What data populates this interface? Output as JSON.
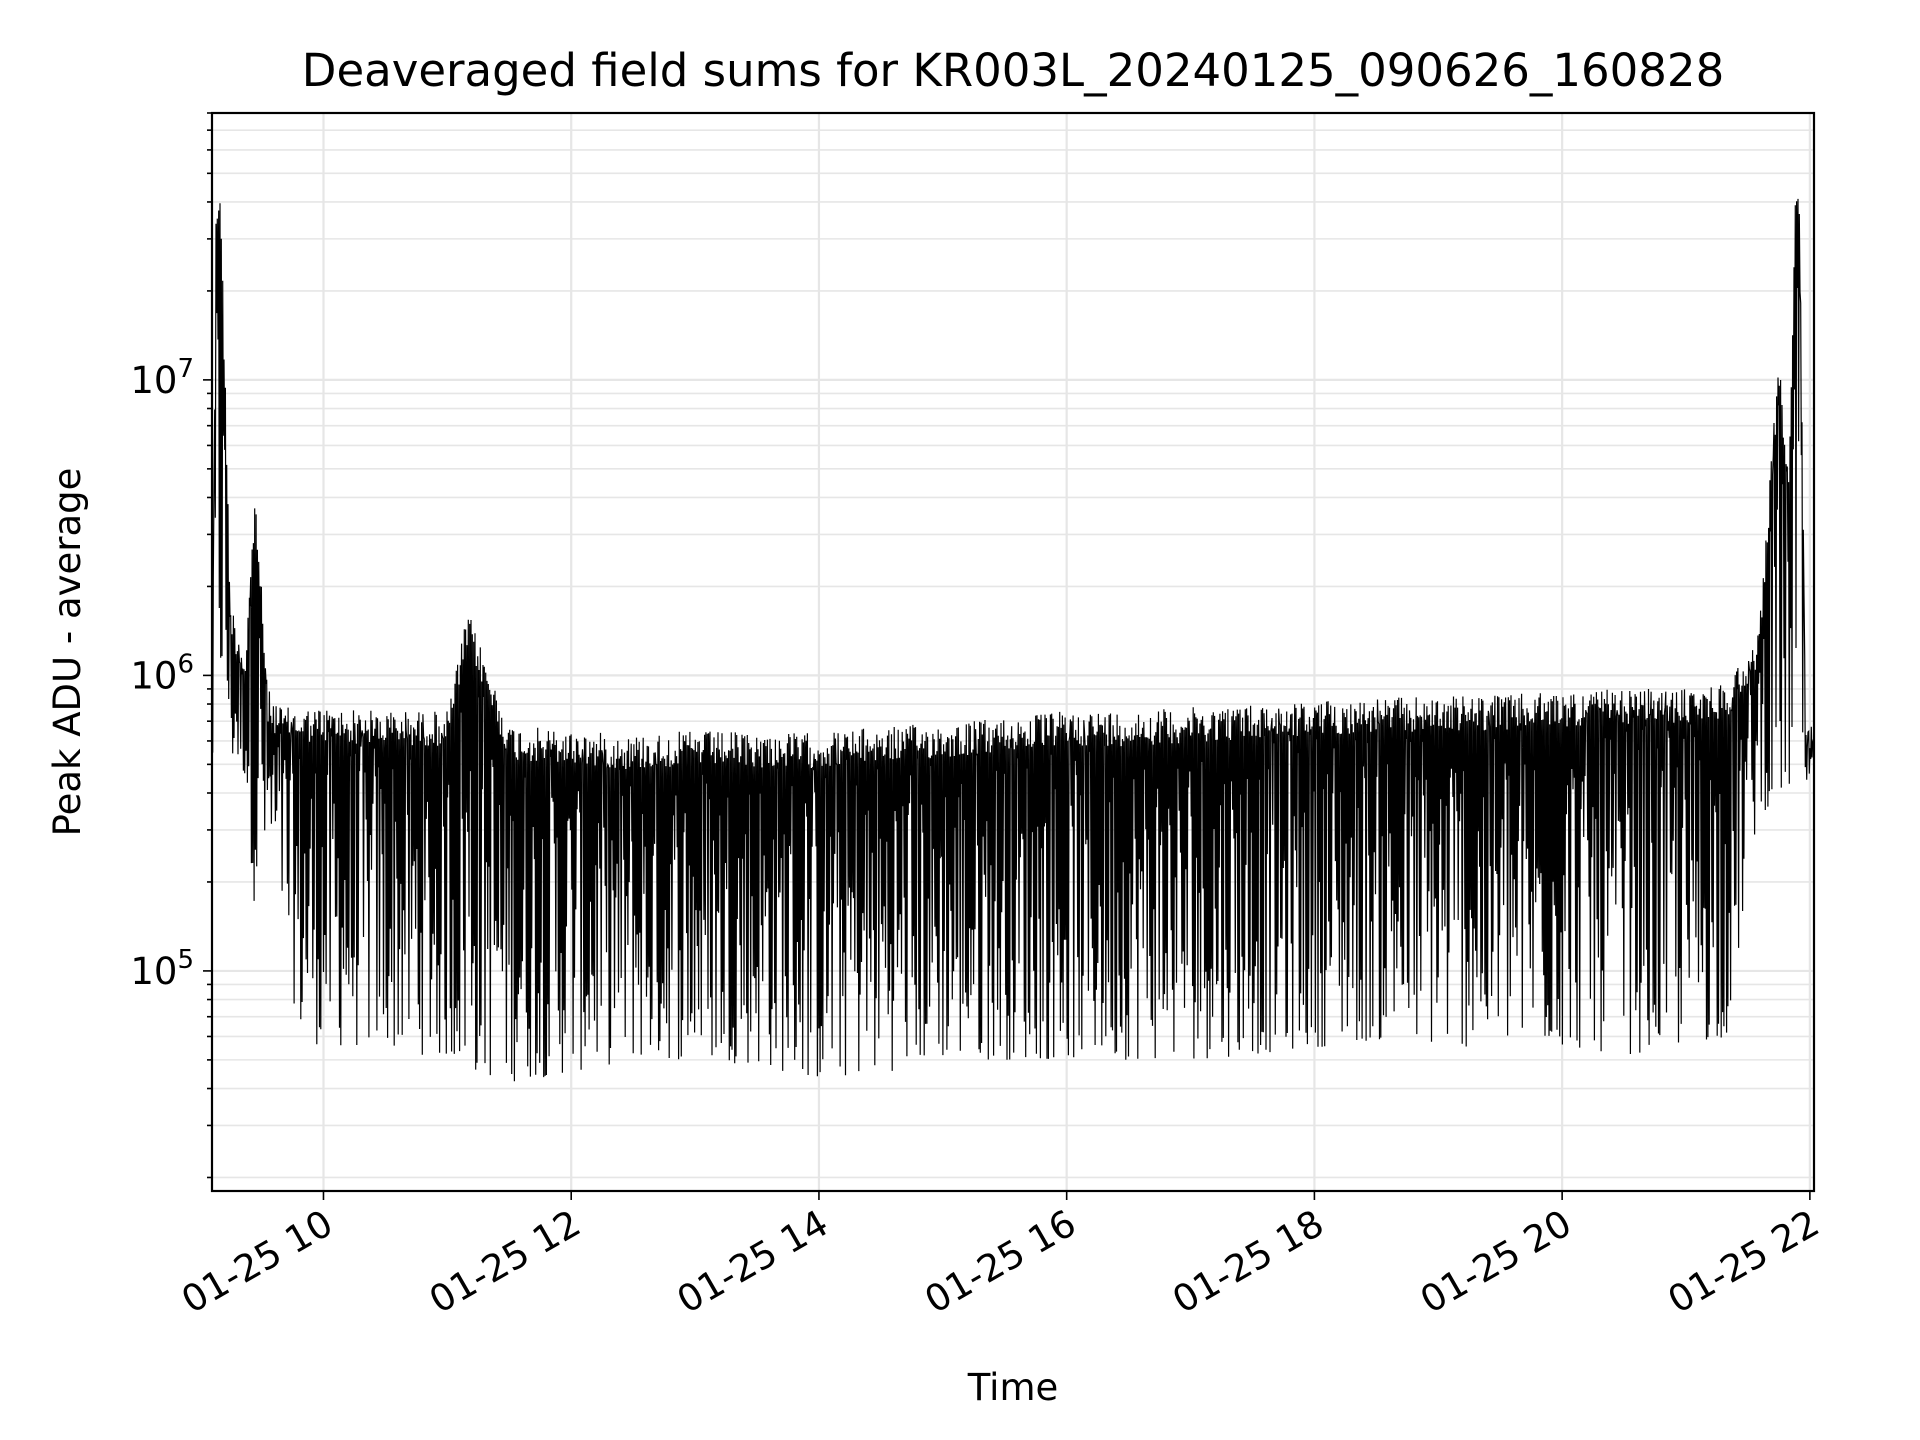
{
  "chart_data": {
    "type": "line",
    "title": "Deaveraged field sums for KR003L_20240125_090626_160828",
    "xlabel": "Time",
    "ylabel": "Peak ADU - average",
    "x_axis": {
      "type": "datetime",
      "range": [
        "01-25 09:06",
        "01-25 22:02"
      ],
      "ticks": [
        "01-25 10",
        "01-25 12",
        "01-25 14",
        "01-25 16",
        "01-25 18",
        "01-25 20",
        "01-25 22"
      ]
    },
    "y_axis": {
      "scale": "log",
      "range": [
        18000,
        80000000
      ],
      "ticks": [
        {
          "base": "10",
          "exp": "5",
          "value": 100000
        },
        {
          "base": "10",
          "exp": "6",
          "value": 1000000
        },
        {
          "base": "10",
          "exp": "7",
          "value": 10000000
        }
      ]
    },
    "grid": true,
    "line_color": "#000000",
    "grid_color": "#e6e6e6",
    "series": [
      {
        "x": [
          "01-25 09:06",
          "01-25 09:08",
          "01-25 09:10",
          "01-25 09:15",
          "01-25 09:22",
          "01-25 09:27",
          "01-25 09:33",
          "01-25 09:40",
          "01-25 09:48",
          "01-25 10:00",
          "01-25 10:30",
          "01-25 11:00",
          "01-25 11:10",
          "01-25 11:30",
          "01-25 12:00",
          "01-25 12:30",
          "01-25 13:00",
          "01-25 13:30",
          "01-25 14:00",
          "01-25 14:30",
          "01-25 15:00",
          "01-25 15:30",
          "01-25 16:00",
          "01-25 16:30",
          "01-25 17:00",
          "01-25 17:30",
          "01-25 18:00",
          "01-25 18:30",
          "01-25 19:00",
          "01-25 19:30",
          "01-25 20:00",
          "01-25 20:30",
          "01-25 21:00",
          "01-25 21:20",
          "01-25 21:35",
          "01-25 21:45",
          "01-25 21:50",
          "01-25 21:53",
          "01-25 21:55",
          "01-25 21:58",
          "01-25 22:02"
        ],
        "upper": [
          700000,
          40000000,
          50000000,
          1800000,
          1200000,
          4300000,
          900000,
          780000,
          780000,
          780000,
          760000,
          760000,
          1650000,
          680000,
          650000,
          630000,
          650000,
          640000,
          640000,
          670000,
          690000,
          720000,
          760000,
          760000,
          780000,
          800000,
          820000,
          840000,
          850000,
          860000,
          880000,
          900000,
          900000,
          950000,
          1400000,
          12000000,
          5000000,
          50000000,
          40000000,
          650000,
          700000
        ],
        "lower": [
          450000,
          450000,
          800000,
          500000,
          450000,
          150000,
          250000,
          150000,
          60000,
          55000,
          55000,
          50000,
          45000,
          42000,
          45000,
          50000,
          50000,
          48000,
          42000,
          45000,
          50000,
          50000,
          50000,
          50000,
          50000,
          52000,
          55000,
          58000,
          55000,
          55000,
          55000,
          52000,
          55000,
          60000,
          350000,
          350000,
          400000,
          450000,
          450000,
          400000,
          350000
        ]
      }
    ]
  }
}
